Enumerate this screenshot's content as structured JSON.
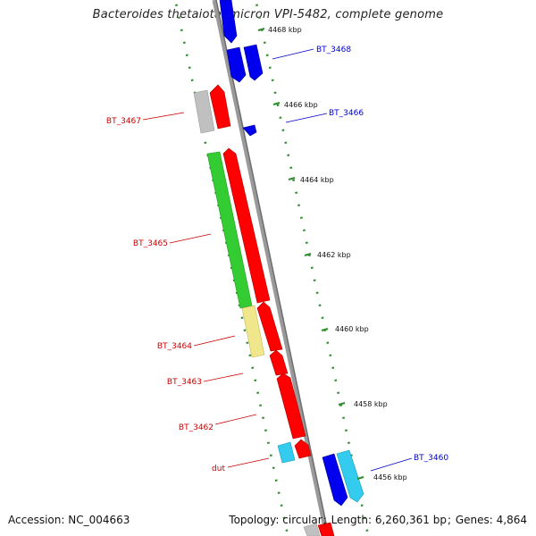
{
  "title": "Bacteroides thetaiotaomicron VPI-5482, complete genome",
  "footer": {
    "accession_label": "Accession:",
    "accession": "NC_004663",
    "topology_label": "Topology:",
    "topology": "circular",
    "length_label": "Length:",
    "length": "6,260,361 bp",
    "genes_label": "Genes:",
    "genes": "4,864"
  },
  "colors": {
    "axis": "#8c8c8c",
    "tick": "#2e8b2e",
    "forward_gene_label": "#cc0000",
    "reverse_gene_label": "#0000cc",
    "red": "#ff0000",
    "green": "#33cc33",
    "grey": "#c0c0c0",
    "khaki": "#f0e68c",
    "blue": "#0000ee",
    "light_blue": "#33ccee"
  },
  "ticks": [
    {
      "label": "4468 kbp",
      "pos": 4468
    },
    {
      "label": "4466 kbp",
      "pos": 4466
    },
    {
      "label": "4464 kbp",
      "pos": 4464
    },
    {
      "label": "4462 kbp",
      "pos": 4462
    },
    {
      "label": "4460 kbp",
      "pos": 4460
    },
    {
      "label": "4458 kbp",
      "pos": 4458
    },
    {
      "label": "4456 kbp",
      "pos": 4456
    }
  ],
  "genes": [
    {
      "name": "BT_3468",
      "strand": "reverse",
      "color": "blue",
      "labeled": true
    },
    {
      "name": "BT_3467",
      "strand": "forward",
      "color": "grey",
      "labeled": true
    },
    {
      "name": "BT_3466",
      "strand": "reverse",
      "color": "blue",
      "labeled": true
    },
    {
      "name": "BT_3465",
      "strand": "forward",
      "color": "green",
      "labeled": true
    },
    {
      "name": "BT_3464",
      "strand": "forward",
      "color": "khaki",
      "labeled": true
    },
    {
      "name": "BT_3463",
      "strand": "forward",
      "color": "red",
      "labeled": true
    },
    {
      "name": "BT_3462",
      "strand": "forward",
      "color": "red",
      "labeled": true
    },
    {
      "name": "dut",
      "strand": "forward",
      "color": "light_blue",
      "labeled": true
    },
    {
      "name": "BT_3460",
      "strand": "reverse",
      "color": "light_blue",
      "labeled": true
    }
  ]
}
